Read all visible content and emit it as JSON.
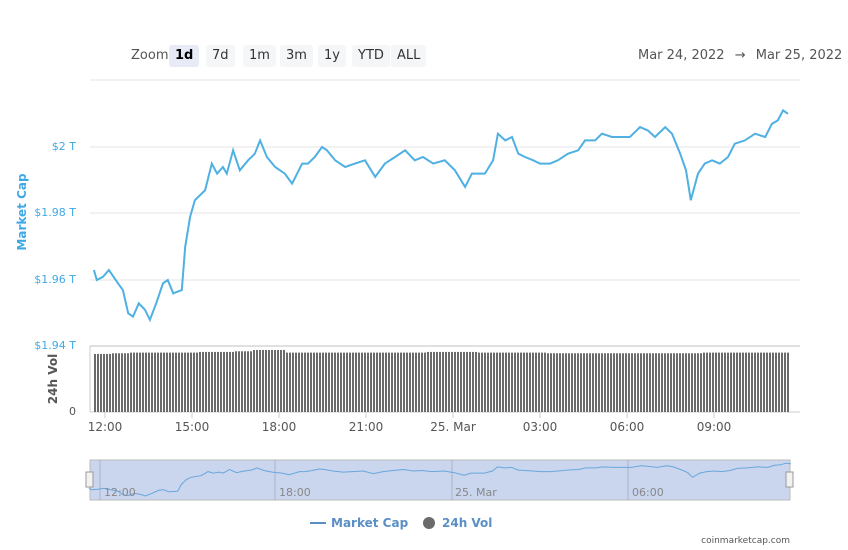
{
  "toolbar": {
    "zoom_label": "Zoom",
    "buttons": [
      "1d",
      "7d",
      "1m",
      "3m",
      "1y",
      "YTD",
      "ALL"
    ],
    "active": "1d",
    "range_from": "Mar 24, 2022",
    "range_arrow": "→",
    "range_to": "Mar 25, 2022"
  },
  "colors": {
    "market_cap": "#4fb0e3",
    "volume": "#6b6b6b",
    "navigator_bg": "#c9d6ee"
  },
  "chart_data": {
    "type": "line",
    "yaxis_title": "Market Cap",
    "yticks": [
      "$2 T",
      "$1.98 T",
      "$1.96 T",
      "$1.94 T"
    ],
    "volume_axis_title": "24h Vol",
    "volume_ticks": [
      "0"
    ],
    "xticks": [
      "12:00",
      "15:00",
      "18:00",
      "21:00",
      "25. Mar",
      "03:00",
      "06:00",
      "09:00"
    ],
    "navigator_ticks": [
      "12:00",
      "18:00",
      "25. Mar",
      "06:00"
    ],
    "legend": [
      "Market Cap",
      "24h Vol"
    ],
    "grid": true,
    "series": [
      {
        "name": "Market Cap",
        "unit": "T USD",
        "points": [
          [
            "2022-03-24T11:37",
            1.963
          ],
          [
            "2022-03-24T11:43",
            1.96
          ],
          [
            "2022-03-24T11:56",
            1.961
          ],
          [
            "2022-03-24T12:08",
            1.963
          ],
          [
            "2022-03-24T12:27",
            1.959
          ],
          [
            "2022-03-24T12:37",
            1.957
          ],
          [
            "2022-03-24T12:48",
            1.95
          ],
          [
            "2022-03-24T12:58",
            1.949
          ],
          [
            "2022-03-24T13:10",
            1.953
          ],
          [
            "2022-03-24T13:23",
            1.951
          ],
          [
            "2022-03-24T13:33",
            1.948
          ],
          [
            "2022-03-24T13:46",
            1.953
          ],
          [
            "2022-03-24T14:00",
            1.959
          ],
          [
            "2022-03-24T14:10",
            1.96
          ],
          [
            "2022-03-24T14:21",
            1.956
          ],
          [
            "2022-03-24T14:39",
            1.957
          ],
          [
            "2022-03-24T14:46",
            1.97
          ],
          [
            "2022-03-24T14:56",
            1.979
          ],
          [
            "2022-03-24T15:06",
            1.984
          ],
          [
            "2022-03-24T15:27",
            1.987
          ],
          [
            "2022-03-24T15:41",
            1.995
          ],
          [
            "2022-03-24T15:52",
            1.992
          ],
          [
            "2022-03-24T16:04",
            1.994
          ],
          [
            "2022-03-24T16:12",
            1.992
          ],
          [
            "2022-03-24T16:25",
            1.999
          ],
          [
            "2022-03-24T16:39",
            1.993
          ],
          [
            "2022-03-24T16:56",
            1.996
          ],
          [
            "2022-03-24T17:10",
            1.998
          ],
          [
            "2022-03-24T17:21",
            2.002
          ],
          [
            "2022-03-24T17:35",
            1.997
          ],
          [
            "2022-03-24T17:52",
            1.994
          ],
          [
            "2022-03-24T18:12",
            1.992
          ],
          [
            "2022-03-24T18:27",
            1.989
          ],
          [
            "2022-03-24T18:48",
            1.995
          ],
          [
            "2022-03-24T19:00",
            1.995
          ],
          [
            "2022-03-24T19:14",
            1.997
          ],
          [
            "2022-03-24T19:29",
            2.0
          ],
          [
            "2022-03-24T19:39",
            1.999
          ],
          [
            "2022-03-24T19:56",
            1.996
          ],
          [
            "2022-03-24T20:17",
            1.994
          ],
          [
            "2022-03-24T20:37",
            1.995
          ],
          [
            "2022-03-24T20:58",
            1.996
          ],
          [
            "2022-03-24T21:19",
            1.991
          ],
          [
            "2022-03-24T21:39",
            1.995
          ],
          [
            "2022-03-24T22:00",
            1.997
          ],
          [
            "2022-03-24T22:21",
            1.999
          ],
          [
            "2022-03-24T22:41",
            1.996
          ],
          [
            "2022-03-24T22:58",
            1.997
          ],
          [
            "2022-03-24T23:19",
            1.995
          ],
          [
            "2022-03-24T23:43",
            1.996
          ],
          [
            "2022-03-25T00:04",
            1.993
          ],
          [
            "2022-03-25T00:25",
            1.988
          ],
          [
            "2022-03-25T00:39",
            1.992
          ],
          [
            "2022-03-25T01:06",
            1.992
          ],
          [
            "2022-03-25T01:23",
            1.996
          ],
          [
            "2022-03-25T01:33",
            2.004
          ],
          [
            "2022-03-25T01:48",
            2.002
          ],
          [
            "2022-03-25T02:02",
            2.003
          ],
          [
            "2022-03-25T02:15",
            1.998
          ],
          [
            "2022-03-25T02:29",
            1.997
          ],
          [
            "2022-03-25T02:46",
            1.996
          ],
          [
            "2022-03-25T03:00",
            1.995
          ],
          [
            "2022-03-25T03:21",
            1.995
          ],
          [
            "2022-03-25T03:37",
            1.996
          ],
          [
            "2022-03-25T03:58",
            1.998
          ],
          [
            "2022-03-25T04:19",
            1.999
          ],
          [
            "2022-03-25T04:33",
            2.002
          ],
          [
            "2022-03-25T04:54",
            2.002
          ],
          [
            "2022-03-25T05:08",
            2.004
          ],
          [
            "2022-03-25T05:29",
            2.003
          ],
          [
            "2022-03-25T05:50",
            2.003
          ],
          [
            "2022-03-25T06:06",
            2.003
          ],
          [
            "2022-03-25T06:27",
            2.006
          ],
          [
            "2022-03-25T06:43",
            2.005
          ],
          [
            "2022-03-25T06:58",
            2.003
          ],
          [
            "2022-03-25T07:19",
            2.006
          ],
          [
            "2022-03-25T07:33",
            2.004
          ],
          [
            "2022-03-25T07:50",
            1.998
          ],
          [
            "2022-03-25T08:02",
            1.993
          ],
          [
            "2022-03-25T08:12",
            1.984
          ],
          [
            "2022-03-25T08:27",
            1.992
          ],
          [
            "2022-03-25T08:41",
            1.995
          ],
          [
            "2022-03-25T08:56",
            1.996
          ],
          [
            "2022-03-25T09:12",
            1.995
          ],
          [
            "2022-03-25T09:29",
            1.997
          ],
          [
            "2022-03-25T09:43",
            2.001
          ],
          [
            "2022-03-25T10:04",
            2.002
          ],
          [
            "2022-03-25T10:25",
            2.004
          ],
          [
            "2022-03-25T10:46",
            2.003
          ],
          [
            "2022-03-25T11:00",
            2.007
          ],
          [
            "2022-03-25T11:12",
            2.008
          ],
          [
            "2022-03-25T11:23",
            2.011
          ],
          [
            "2022-03-25T11:33",
            2.01
          ]
        ]
      },
      {
        "name": "24h Vol",
        "relative_levels": [
          0.88,
          0.89,
          0.9,
          0.9,
          0.9,
          0.9,
          0.91,
          0.91,
          0.92,
          0.94,
          0.94,
          0.9,
          0.9,
          0.9,
          0.9,
          0.9,
          0.9,
          0.9,
          0.9,
          0.91,
          0.91,
          0.91,
          0.9,
          0.9,
          0.9,
          0.9,
          0.89,
          0.89,
          0.89,
          0.89,
          0.89,
          0.89,
          0.89,
          0.89,
          0.89,
          0.9,
          0.9,
          0.9,
          0.9,
          0.9
        ]
      }
    ]
  },
  "credit": "coinmarketcap.com"
}
